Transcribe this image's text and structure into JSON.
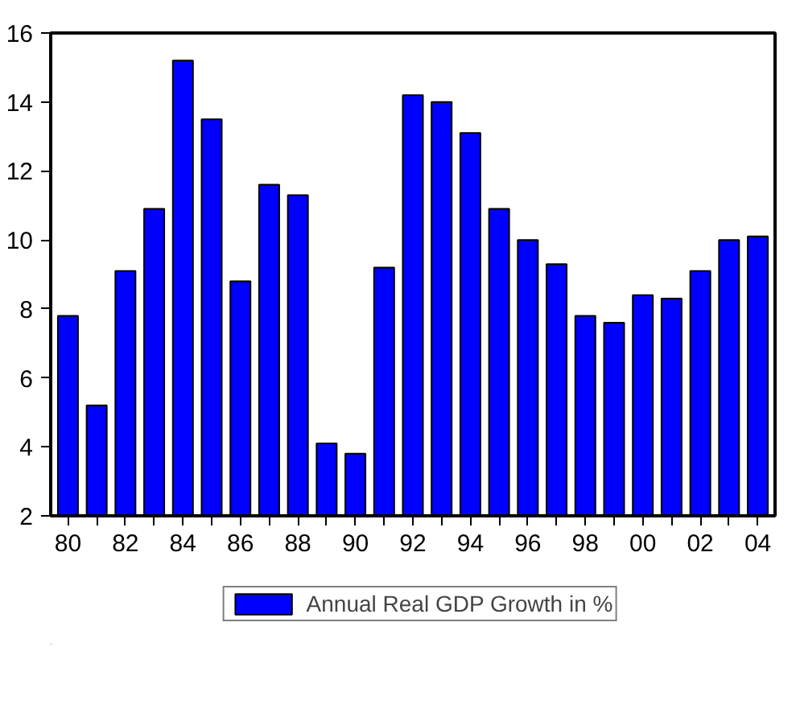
{
  "chart_data": {
    "type": "bar",
    "categories": [
      "80",
      null,
      "82",
      null,
      "84",
      null,
      "86",
      null,
      "88",
      null,
      "90",
      null,
      "92",
      null,
      "94",
      null,
      "96",
      null,
      "98",
      null,
      "00",
      null,
      "02",
      null,
      "04"
    ],
    "series": [
      {
        "name": "Annual Real GDP Growth in %",
        "color": "#0000ff",
        "values": [
          7.8,
          5.2,
          9.1,
          10.9,
          15.2,
          13.5,
          8.8,
          11.6,
          11.3,
          4.1,
          3.8,
          9.2,
          14.2,
          14.0,
          13.1,
          10.9,
          10.0,
          9.3,
          7.8,
          7.6,
          8.4,
          8.3,
          9.1,
          10.0,
          10.1
        ]
      }
    ],
    "ylim": [
      2,
      16
    ],
    "yticks": [
      2,
      4,
      6,
      8,
      10,
      12,
      14,
      16
    ],
    "grid": false,
    "legend": "bottom"
  }
}
